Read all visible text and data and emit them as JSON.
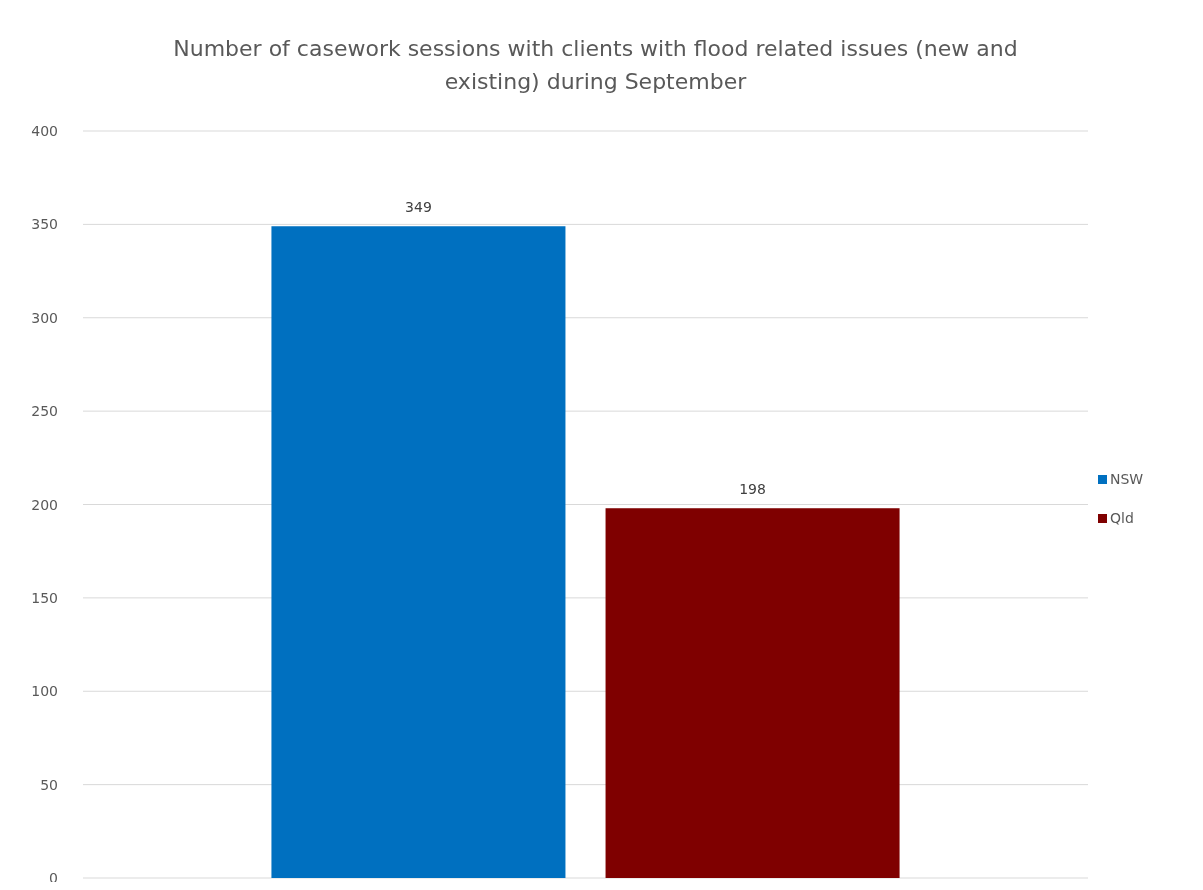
{
  "chart_data": {
    "type": "bar",
    "title": "Number of casework sessions with clients with flood related issues (new and existing) during September",
    "categories": [
      null
    ],
    "series": [
      {
        "name": "NSW",
        "color": "#0070c0",
        "values": [
          349
        ]
      },
      {
        "name": "Qld",
        "color": "#7f0000",
        "values": [
          198
        ]
      }
    ],
    "ylim": [
      0,
      400
    ],
    "yticks": [
      0,
      50,
      100,
      150,
      200,
      250,
      300,
      350,
      400
    ],
    "grid": "y",
    "legend": "right",
    "data_labels": true
  }
}
